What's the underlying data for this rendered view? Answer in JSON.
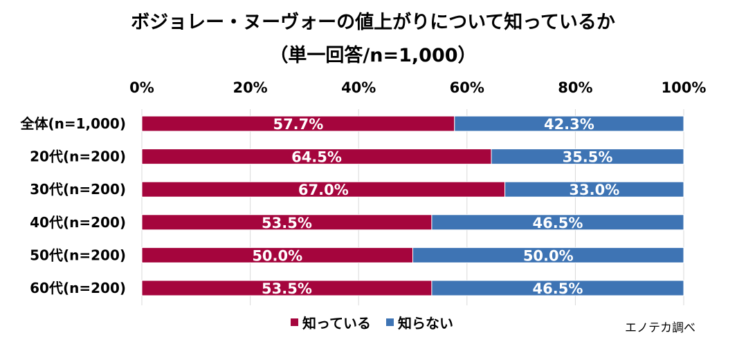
{
  "chart_data": {
    "type": "bar",
    "orientation": "horizontal",
    "stacked": true,
    "title": "ボジョレー・ヌーヴォーの値上がりについて知っているか",
    "subtitle": "（単一回答/n=1,000）",
    "categories": [
      "全体(n=1,000)",
      "20代(n=200)",
      "30代(n=200)",
      "40代(n=200)",
      "50代(n=200)",
      "60代(n=200)"
    ],
    "series": [
      {
        "name": "知っている",
        "color": "#A5053D",
        "values": [
          57.7,
          64.5,
          67.0,
          53.5,
          50.0,
          53.5
        ],
        "labels": [
          "57.7%",
          "64.5%",
          "67.0%",
          "53.5%",
          "50.0%",
          "53.5%"
        ]
      },
      {
        "name": "知らない",
        "color": "#3E74B4",
        "values": [
          42.3,
          35.5,
          33.0,
          46.5,
          50.0,
          46.5
        ],
        "labels": [
          "42.3%",
          "35.5%",
          "33.0%",
          "46.5%",
          "50.0%",
          "46.5%"
        ]
      }
    ],
    "xlim": [
      0,
      100
    ],
    "xticks": [
      "0%",
      "20%",
      "40%",
      "60%",
      "80%",
      "100%"
    ],
    "xaxis_position": "top",
    "grid": true,
    "legend_position": "bottom"
  },
  "source_note": "エノテカ調べ"
}
